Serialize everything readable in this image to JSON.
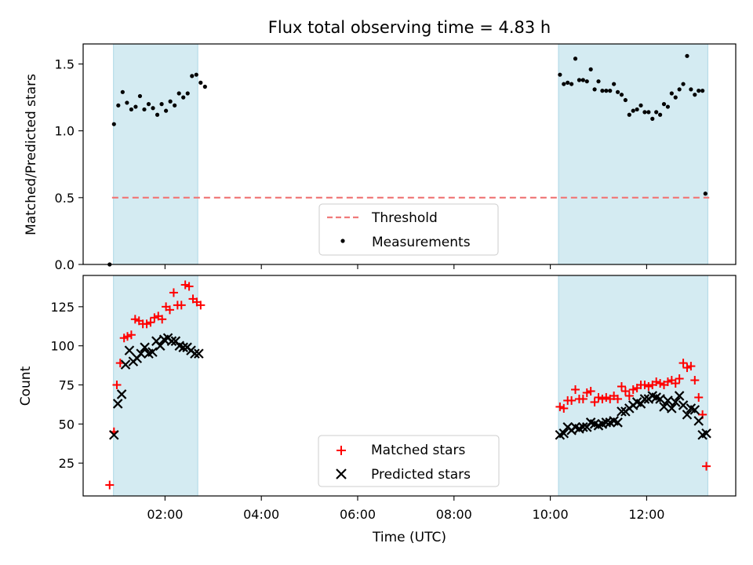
{
  "title": "Flux total observing time = 4.83 h",
  "colors": {
    "background": "#ffffff",
    "shade": "#add8e6",
    "threshold": "#f07b7b",
    "measurements": "#000000",
    "matched": "#ff0000",
    "predicted": "#000000"
  },
  "chart_data": [
    {
      "type": "scatter",
      "ylabel": "Matched/Predicted stars",
      "xlabel": "",
      "xlim": [
        0.3,
        13.85
      ],
      "ylim": [
        0.0,
        1.65
      ],
      "yticks": [
        0.0,
        0.5,
        1.0,
        1.5
      ],
      "ytick_labels": [
        "0.0",
        "0.5",
        "1.0",
        "1.5"
      ],
      "xticks": [
        2,
        4,
        6,
        8,
        10,
        12
      ],
      "xtick_labels": [],
      "shaded_intervals": [
        [
          0.93,
          2.68
        ],
        [
          10.17,
          13.27
        ]
      ],
      "threshold": {
        "name": "Threshold",
        "value": 0.5,
        "x_range": [
          0.9,
          13.3
        ],
        "style": "dashed"
      },
      "legend": {
        "position": "lower center",
        "entries": [
          "Threshold",
          "Measurements"
        ]
      },
      "series": [
        {
          "name": "Measurements",
          "marker": "dot",
          "points": [
            [
              0.85,
              0.0
            ],
            [
              0.94,
              1.05
            ],
            [
              1.03,
              1.19
            ],
            [
              1.12,
              1.29
            ],
            [
              1.21,
              1.21
            ],
            [
              1.3,
              1.16
            ],
            [
              1.39,
              1.18
            ],
            [
              1.48,
              1.26
            ],
            [
              1.57,
              1.16
            ],
            [
              1.66,
              1.2
            ],
            [
              1.75,
              1.17
            ],
            [
              1.84,
              1.12
            ],
            [
              1.93,
              1.2
            ],
            [
              2.02,
              1.15
            ],
            [
              2.11,
              1.22
            ],
            [
              2.2,
              1.19
            ],
            [
              2.29,
              1.28
            ],
            [
              2.38,
              1.25
            ],
            [
              2.47,
              1.28
            ],
            [
              2.56,
              1.41
            ],
            [
              2.65,
              1.42
            ],
            [
              2.74,
              1.36
            ],
            [
              2.83,
              1.33
            ],
            [
              10.2,
              1.42
            ],
            [
              10.28,
              1.35
            ],
            [
              10.36,
              1.36
            ],
            [
              10.44,
              1.35
            ],
            [
              10.52,
              1.54
            ],
            [
              10.6,
              1.38
            ],
            [
              10.68,
              1.38
            ],
            [
              10.76,
              1.37
            ],
            [
              10.84,
              1.46
            ],
            [
              10.92,
              1.31
            ],
            [
              11.0,
              1.37
            ],
            [
              11.08,
              1.3
            ],
            [
              11.16,
              1.3
            ],
            [
              11.24,
              1.3
            ],
            [
              11.32,
              1.35
            ],
            [
              11.4,
              1.29
            ],
            [
              11.48,
              1.27
            ],
            [
              11.56,
              1.23
            ],
            [
              11.64,
              1.12
            ],
            [
              11.72,
              1.15
            ],
            [
              11.8,
              1.16
            ],
            [
              11.88,
              1.19
            ],
            [
              11.96,
              1.14
            ],
            [
              12.04,
              1.14
            ],
            [
              12.12,
              1.09
            ],
            [
              12.2,
              1.14
            ],
            [
              12.28,
              1.12
            ],
            [
              12.36,
              1.2
            ],
            [
              12.44,
              1.18
            ],
            [
              12.52,
              1.28
            ],
            [
              12.6,
              1.25
            ],
            [
              12.68,
              1.31
            ],
            [
              12.76,
              1.35
            ],
            [
              12.84,
              1.56
            ],
            [
              12.92,
              1.31
            ],
            [
              13.0,
              1.27
            ],
            [
              13.08,
              1.3
            ],
            [
              13.16,
              1.3
            ],
            [
              13.22,
              0.53
            ]
          ]
        }
      ]
    },
    {
      "type": "scatter",
      "ylabel": "Count",
      "xlabel": "Time (UTC)",
      "xlim": [
        0.3,
        13.85
      ],
      "ylim": [
        4,
        145
      ],
      "yticks": [
        25,
        50,
        75,
        100,
        125
      ],
      "ytick_labels": [
        "25",
        "50",
        "75",
        "100",
        "125"
      ],
      "xticks": [
        2,
        4,
        6,
        8,
        10,
        12
      ],
      "xtick_labels": [
        "02:00",
        "04:00",
        "06:00",
        "08:00",
        "10:00",
        "12:00"
      ],
      "shaded_intervals": [
        [
          0.93,
          2.68
        ],
        [
          10.17,
          13.27
        ]
      ],
      "legend": {
        "position": "lower center",
        "entries": [
          "Matched stars",
          "Predicted stars"
        ]
      },
      "series": [
        {
          "name": "Matched stars",
          "marker": "plus",
          "points": [
            [
              0.85,
              11
            ],
            [
              0.94,
              45
            ],
            [
              1.0,
              75
            ],
            [
              1.07,
              89
            ],
            [
              1.15,
              105
            ],
            [
              1.22,
              106
            ],
            [
              1.3,
              107
            ],
            [
              1.38,
              117
            ],
            [
              1.46,
              116
            ],
            [
              1.54,
              114
            ],
            [
              1.62,
              114
            ],
            [
              1.7,
              115
            ],
            [
              1.78,
              118
            ],
            [
              1.86,
              119
            ],
            [
              1.94,
              117
            ],
            [
              2.02,
              125
            ],
            [
              2.1,
              123
            ],
            [
              2.18,
              134
            ],
            [
              2.26,
              126
            ],
            [
              2.34,
              126
            ],
            [
              2.42,
              139
            ],
            [
              2.5,
              138
            ],
            [
              2.58,
              130
            ],
            [
              2.66,
              128
            ],
            [
              2.74,
              126
            ],
            [
              10.2,
              61
            ],
            [
              10.28,
              60
            ],
            [
              10.36,
              65
            ],
            [
              10.44,
              65
            ],
            [
              10.52,
              72
            ],
            [
              10.6,
              66
            ],
            [
              10.68,
              66
            ],
            [
              10.76,
              70
            ],
            [
              10.84,
              71
            ],
            [
              10.92,
              64
            ],
            [
              11.0,
              67
            ],
            [
              11.08,
              66
            ],
            [
              11.16,
              67
            ],
            [
              11.24,
              66
            ],
            [
              11.32,
              68
            ],
            [
              11.4,
              66
            ],
            [
              11.48,
              74
            ],
            [
              11.56,
              71
            ],
            [
              11.64,
              68
            ],
            [
              11.72,
              72
            ],
            [
              11.8,
              73
            ],
            [
              11.88,
              75
            ],
            [
              11.96,
              75
            ],
            [
              12.04,
              74
            ],
            [
              12.12,
              75
            ],
            [
              12.2,
              77
            ],
            [
              12.28,
              76
            ],
            [
              12.36,
              75
            ],
            [
              12.44,
              77
            ],
            [
              12.52,
              78
            ],
            [
              12.6,
              76
            ],
            [
              12.68,
              79
            ],
            [
              12.76,
              89
            ],
            [
              12.84,
              86
            ],
            [
              12.92,
              87
            ],
            [
              13.0,
              78
            ],
            [
              13.08,
              67
            ],
            [
              13.16,
              56
            ],
            [
              13.24,
              23
            ]
          ]
        },
        {
          "name": "Predicted stars",
          "marker": "x",
          "points": [
            [
              0.94,
              43
            ],
            [
              1.02,
              63
            ],
            [
              1.1,
              69
            ],
            [
              1.18,
              88
            ],
            [
              1.26,
              97
            ],
            [
              1.34,
              90
            ],
            [
              1.42,
              92
            ],
            [
              1.5,
              95
            ],
            [
              1.58,
              99
            ],
            [
              1.66,
              95
            ],
            [
              1.74,
              96
            ],
            [
              1.82,
              103
            ],
            [
              1.9,
              100
            ],
            [
              1.98,
              104
            ],
            [
              2.06,
              105
            ],
            [
              2.14,
              103
            ],
            [
              2.22,
              103
            ],
            [
              2.3,
              100
            ],
            [
              2.38,
              99
            ],
            [
              2.46,
              99
            ],
            [
              2.54,
              97
            ],
            [
              2.62,
              95
            ],
            [
              2.7,
              95
            ],
            [
              10.2,
              43
            ],
            [
              10.28,
              44
            ],
            [
              10.36,
              48
            ],
            [
              10.44,
              46
            ],
            [
              10.52,
              48
            ],
            [
              10.6,
              47
            ],
            [
              10.68,
              48
            ],
            [
              10.76,
              48
            ],
            [
              10.84,
              51
            ],
            [
              10.92,
              50
            ],
            [
              11.0,
              49
            ],
            [
              11.08,
              50
            ],
            [
              11.16,
              51
            ],
            [
              11.24,
              51
            ],
            [
              11.32,
              52
            ],
            [
              11.4,
              51
            ],
            [
              11.48,
              58
            ],
            [
              11.56,
              58
            ],
            [
              11.64,
              60
            ],
            [
              11.72,
              62
            ],
            [
              11.8,
              64
            ],
            [
              11.88,
              63
            ],
            [
              11.96,
              66
            ],
            [
              12.04,
              66
            ],
            [
              12.12,
              68
            ],
            [
              12.2,
              67
            ],
            [
              12.28,
              66
            ],
            [
              12.36,
              61
            ],
            [
              12.44,
              65
            ],
            [
              12.52,
              60
            ],
            [
              12.6,
              64
            ],
            [
              12.68,
              68
            ],
            [
              12.76,
              62
            ],
            [
              12.84,
              56
            ],
            [
              12.92,
              60
            ],
            [
              13.0,
              59
            ],
            [
              13.08,
              52
            ],
            [
              13.16,
              43
            ],
            [
              13.24,
              44
            ]
          ]
        }
      ]
    }
  ]
}
